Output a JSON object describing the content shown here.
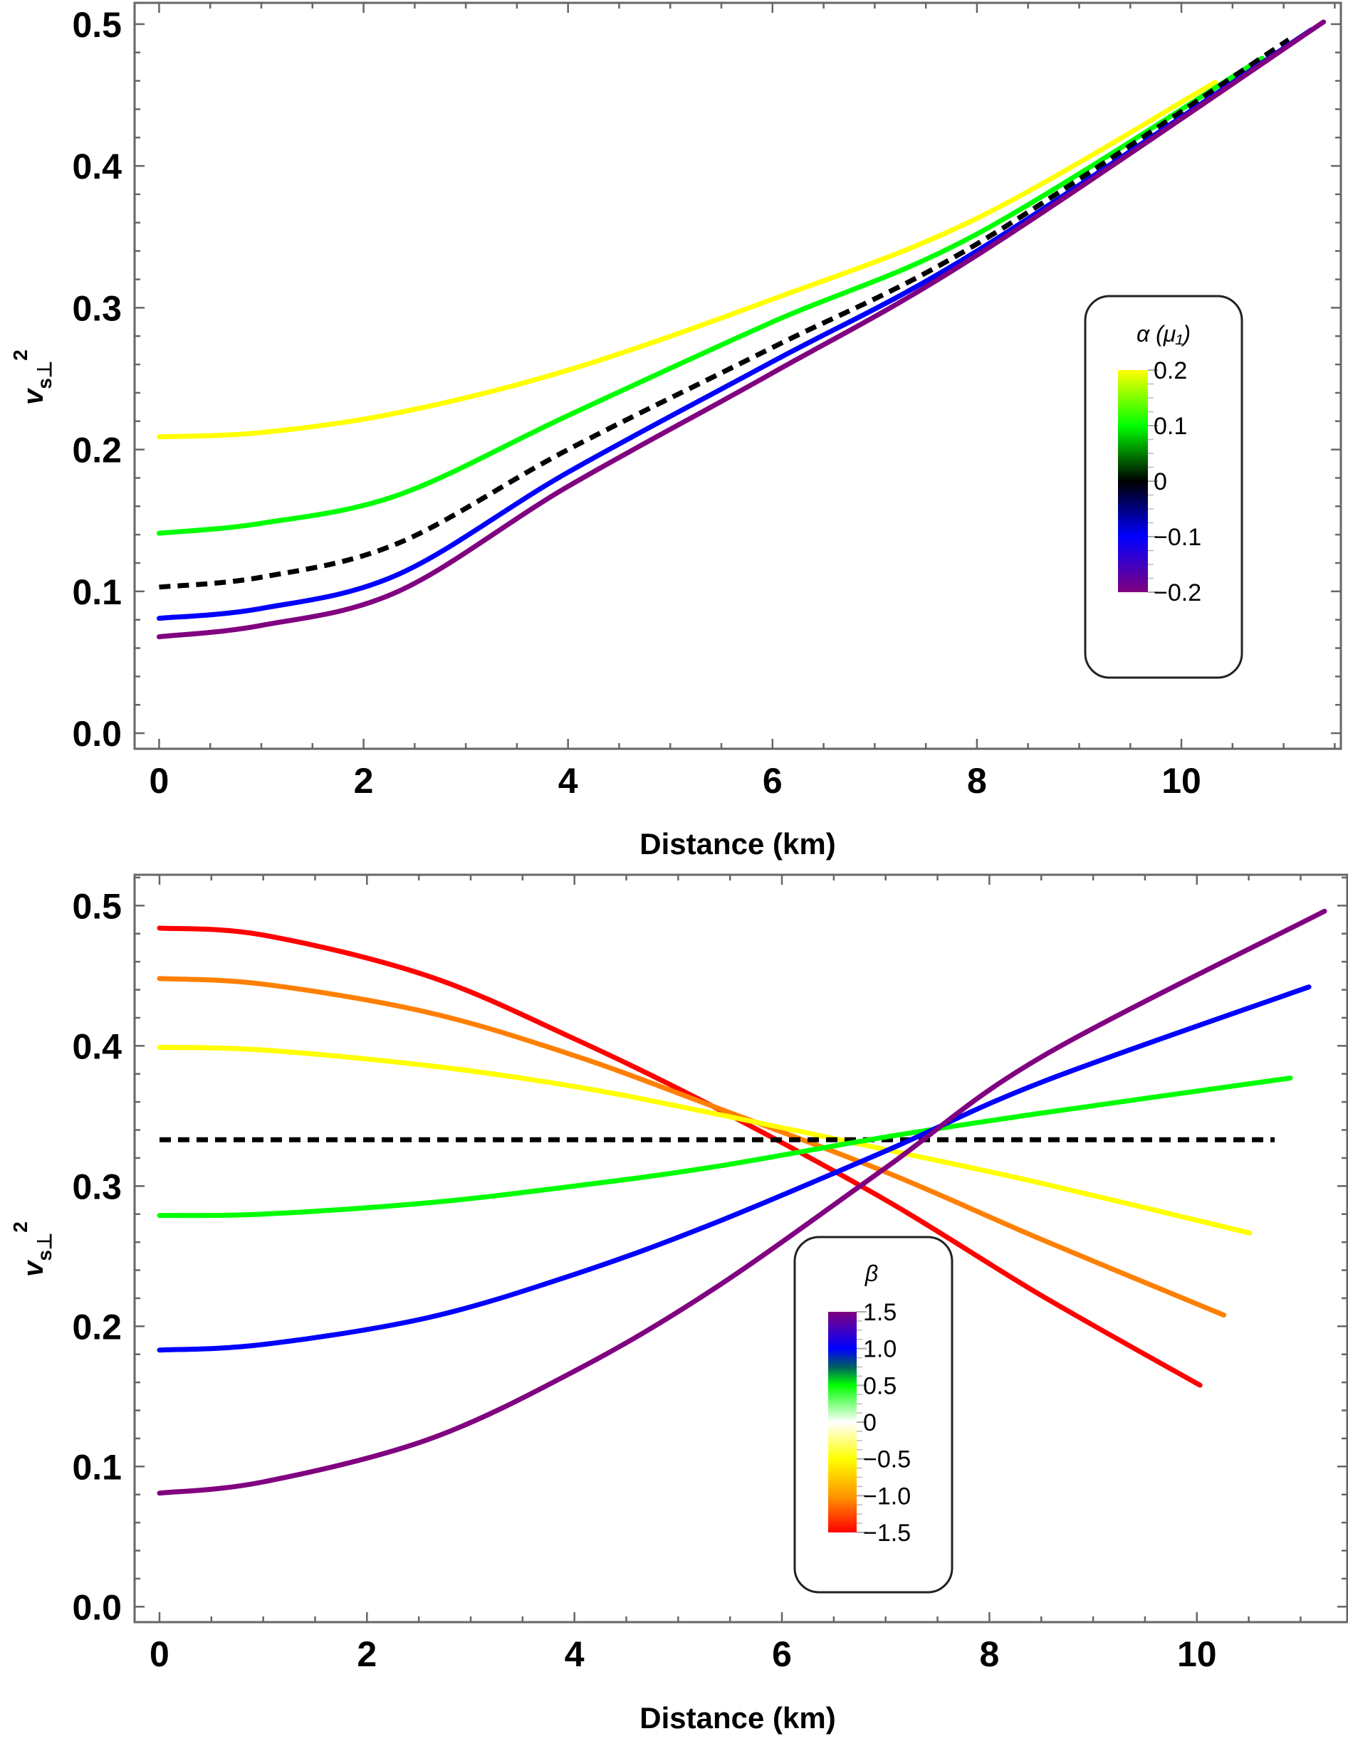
{
  "chart_data": [
    {
      "id": "top",
      "type": "line",
      "xlabel": "Distance (km)",
      "ylabel": "v_s⊥^2",
      "ylabel_parts": {
        "base": "v",
        "sub": "s⊥",
        "sup": "2"
      },
      "xlim": [
        -0.24,
        11.56
      ],
      "ylim": [
        -0.011,
        0.515
      ],
      "xticks": [
        0,
        2,
        4,
        6,
        8,
        10
      ],
      "xtick_labels": [
        "0",
        "2",
        "4",
        "6",
        "8",
        "10"
      ],
      "yticks": [
        0.0,
        0.1,
        0.2,
        0.3,
        0.4,
        0.5
      ],
      "ytick_labels": [
        "0.0",
        "0.1",
        "0.2",
        "0.3",
        "0.4",
        "0.5"
      ],
      "grid": false,
      "legend": {
        "type": "colorbar",
        "title": "α (μ₁)",
        "placement": "right-middle",
        "stops": [
          {
            "value": 0.2,
            "color": "#ffff00"
          },
          {
            "value": 0.1,
            "color": "#00ff00"
          },
          {
            "value": 0.0,
            "color": "#000000"
          },
          {
            "value": -0.1,
            "color": "#0000ff"
          },
          {
            "value": -0.2,
            "color": "#800080"
          }
        ],
        "ticks": [
          "0.2",
          "0.1",
          "0",
          "−0.1",
          "−0.2"
        ],
        "tick_values": [
          0.2,
          0.1,
          0.0,
          -0.1,
          -0.2
        ]
      },
      "series": [
        {
          "name": "alpha = 0.2",
          "color": "#ffff00",
          "dashed": false,
          "x": [
            0,
            1,
            2.34,
            4,
            6,
            8,
            10.33
          ],
          "y": [
            0.209,
            0.212,
            0.226,
            0.256,
            0.306,
            0.363,
            0.459
          ]
        },
        {
          "name": "alpha = 0.1",
          "color": "#00ff00",
          "dashed": false,
          "x": [
            0,
            1,
            2.34,
            4,
            6,
            8,
            10.79
          ],
          "y": [
            0.141,
            0.148,
            0.168,
            0.224,
            0.29,
            0.352,
            0.476
          ]
        },
        {
          "name": "alpha = 0",
          "color": "#000000",
          "dashed": true,
          "x": [
            0,
            1,
            2.34,
            4,
            6,
            8,
            11.05
          ],
          "y": [
            0.103,
            0.11,
            0.134,
            0.2,
            0.272,
            0.345,
            0.489
          ]
        },
        {
          "name": "alpha = -0.1",
          "color": "#0000ff",
          "dashed": false,
          "x": [
            0,
            1,
            2.34,
            4,
            6,
            8,
            11.27
          ],
          "y": [
            0.081,
            0.088,
            0.112,
            0.184,
            0.262,
            0.34,
            0.496
          ]
        },
        {
          "name": "alpha = -0.2",
          "color": "#800080",
          "dashed": false,
          "x": [
            0,
            1,
            2.34,
            4,
            6,
            8,
            11.39
          ],
          "y": [
            0.068,
            0.076,
            0.1,
            0.174,
            0.254,
            0.337,
            0.5015
          ]
        }
      ]
    },
    {
      "id": "bottom",
      "type": "line",
      "xlabel": "Distance (km)",
      "ylabel": "v_s⊥^2",
      "ylabel_parts": {
        "base": "v",
        "sub": "s⊥",
        "sup": "2"
      },
      "xlim": [
        -0.24,
        11.45
      ],
      "ylim": [
        -0.011,
        0.522
      ],
      "xticks": [
        0,
        2,
        4,
        6,
        8,
        10
      ],
      "xtick_labels": [
        "0",
        "2",
        "4",
        "6",
        "8",
        "10"
      ],
      "yticks": [
        0.0,
        0.1,
        0.2,
        0.3,
        0.4,
        0.5
      ],
      "ytick_labels": [
        "0.0",
        "0.1",
        "0.2",
        "0.3",
        "0.4",
        "0.5"
      ],
      "grid": false,
      "legend": {
        "type": "colorbar",
        "title": "β",
        "placement": "bottom-center",
        "stops": [
          {
            "value": 1.5,
            "color": "#800080"
          },
          {
            "value": 1.0,
            "color": "#0000ff"
          },
          {
            "value": 0.75,
            "color": "#006060"
          },
          {
            "value": 0.5,
            "color": "#00ff00"
          },
          {
            "value": 0.0,
            "color": "#ffffff"
          },
          {
            "value": -0.5,
            "color": "#ffff00"
          },
          {
            "value": -1.0,
            "color": "#ff9900"
          },
          {
            "value": -1.5,
            "color": "#ff0000"
          }
        ],
        "ticks": [
          "1.5",
          "1.0",
          "0.5",
          "0",
          "−0.5",
          "−1.0",
          "−1.5"
        ],
        "tick_values": [
          1.5,
          1.0,
          0.5,
          0.0,
          -0.5,
          -1.0,
          -1.5
        ]
      },
      "series": [
        {
          "name": "beta = -1.5",
          "color": "#ff0000",
          "dashed": false,
          "x": [
            0,
            1,
            2.58,
            4,
            5.33,
            7,
            8.5,
            10.03
          ],
          "y": [
            0.484,
            0.479,
            0.45,
            0.405,
            0.357,
            0.29,
            0.222,
            0.158
          ]
        },
        {
          "name": "beta = -1.0",
          "color": "#ff8000",
          "dashed": false,
          "x": [
            0,
            1,
            2.58,
            4,
            5.33,
            7,
            8.5,
            10.26
          ],
          "y": [
            0.448,
            0.444,
            0.424,
            0.393,
            0.357,
            0.31,
            0.262,
            0.208
          ]
        },
        {
          "name": "beta = -0.5",
          "color": "#ffff00",
          "dashed": false,
          "x": [
            0,
            1,
            2.58,
            4,
            5.33,
            7,
            8.5,
            10.51
          ],
          "y": [
            0.399,
            0.397,
            0.386,
            0.371,
            0.352,
            0.326,
            0.302,
            0.2665
          ]
        },
        {
          "name": "beta = 0",
          "color": "#000000",
          "dashed": true,
          "x": [
            0,
            10.75
          ],
          "y": [
            0.333,
            0.333
          ]
        },
        {
          "name": "beta = 0.5",
          "color": "#00ff00",
          "dashed": false,
          "x": [
            0,
            1,
            2.58,
            4,
            5.33,
            7,
            8.5,
            10.9
          ],
          "y": [
            0.279,
            0.28,
            0.288,
            0.3,
            0.3135,
            0.335,
            0.352,
            0.377
          ]
        },
        {
          "name": "beta = 1.0",
          "color": "#0000ff",
          "dashed": false,
          "x": [
            0,
            1,
            2.58,
            4,
            5.33,
            7,
            8.5,
            11.08
          ],
          "y": [
            0.183,
            0.187,
            0.206,
            0.237,
            0.273,
            0.325,
            0.374,
            0.442
          ]
        },
        {
          "name": "beta = 1.5",
          "color": "#800080",
          "dashed": false,
          "x": [
            0,
            1,
            2.58,
            4,
            5.33,
            7,
            8.5,
            11.23
          ],
          "y": [
            0.081,
            0.089,
            0.119,
            0.168,
            0.226,
            0.313,
            0.392,
            0.496
          ]
        }
      ]
    }
  ]
}
